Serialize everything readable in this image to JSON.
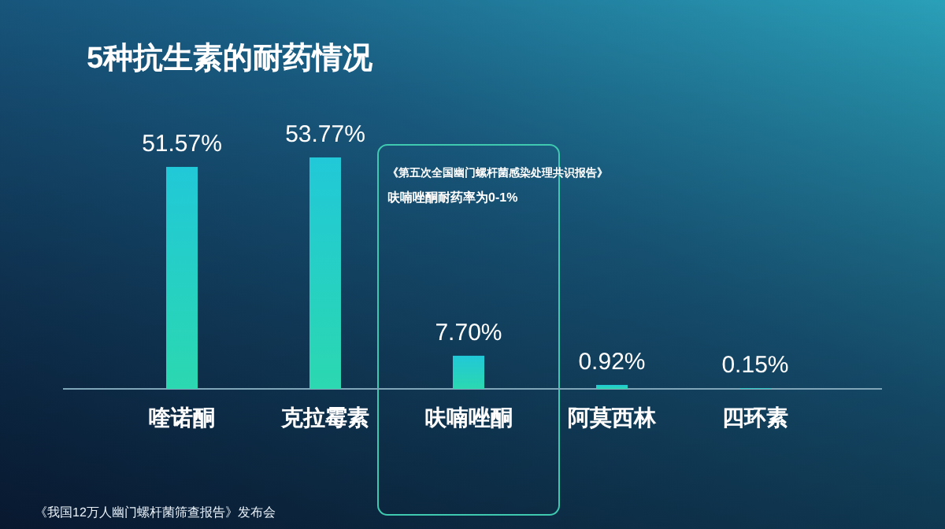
{
  "chart_data": {
    "type": "bar",
    "title": "5种抗生素的耐药情况",
    "categories": [
      "喹诺酮",
      "克拉霉素",
      "呋喃唑酮",
      "阿莫西林",
      "四环素"
    ],
    "values": [
      51.57,
      53.77,
      7.7,
      0.92,
      0.15
    ],
    "value_labels": [
      "51.57%",
      "53.77%",
      "7.70%",
      "0.92%",
      "0.15%"
    ],
    "color": "#21c8d8",
    "annotations": [
      "《第五次全国幽门螺杆菌感染处理共识报告》",
      "呋喃唑酮耐药率为0-1%",
      "《我国12万人幽门螺杆菌筛查报告》发布会"
    ]
  }
}
